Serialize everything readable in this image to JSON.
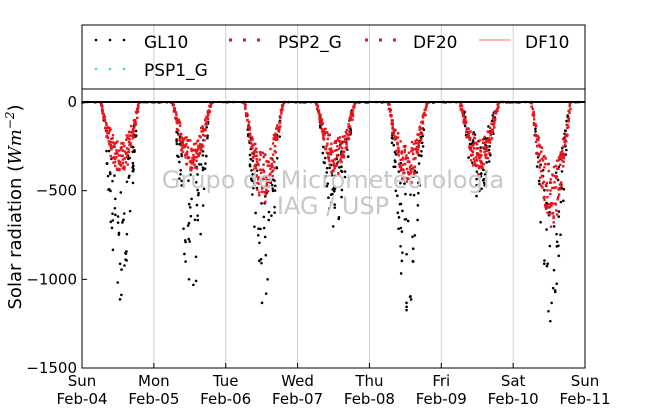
{
  "chart_data": {
    "type": "scatter",
    "ylabel_prefix": "Solar radiation (",
    "ylabel_unit": "Wm",
    "ylabel_exp": "−2",
    "ylabel_suffix": ")",
    "ylim": [
      -1500,
      0
    ],
    "yticks": [
      {
        "value": 0,
        "label": "0"
      },
      {
        "value": -500,
        "label": "−500"
      },
      {
        "value": -1000,
        "label": "−1000"
      },
      {
        "value": -1500,
        "label": "−1500"
      }
    ],
    "xlim": [
      "2018-02-04",
      "2018-02-11"
    ],
    "xticks": [
      {
        "day": "Sun",
        "date": "Feb-04"
      },
      {
        "day": "Mon",
        "date": "Feb-05"
      },
      {
        "day": "Tue",
        "date": "Feb-06"
      },
      {
        "day": "Wed",
        "date": "Feb-07"
      },
      {
        "day": "Thu",
        "date": "Feb-08"
      },
      {
        "day": "Fri",
        "date": "Feb-09"
      },
      {
        "day": "Sat",
        "date": "Feb-10"
      },
      {
        "day": "Sun",
        "date": "Feb-11"
      }
    ],
    "grid": "vertical",
    "legend_position": "top",
    "watermark": [
      "Grupo de Micrometeorologia",
      "IAG / USP"
    ],
    "series": [
      {
        "name": "GL10",
        "style": "dots",
        "color": "#000000"
      },
      {
        "name": "PSP2_G",
        "style": "dots",
        "color": "#e8141c"
      },
      {
        "name": "DF20",
        "style": "dots",
        "color": "#e8141c"
      },
      {
        "name": "DF10",
        "style": "line",
        "color": "#ff6f6f"
      },
      {
        "name": "PSP1_G",
        "style": "dots",
        "color": "#3fd9d9"
      }
    ],
    "days": [
      {
        "date": "Feb-04",
        "gl_peak": -1120,
        "df_peak": -400
      },
      {
        "date": "Feb-05",
        "gl_peak": -1115,
        "df_peak": -380
      },
      {
        "date": "Feb-06",
        "gl_peak": -1150,
        "df_peak": -520
      },
      {
        "date": "Feb-07",
        "gl_peak": -740,
        "df_peak": -380
      },
      {
        "date": "Feb-08",
        "gl_peak": -1210,
        "df_peak": -450
      },
      {
        "date": "Feb-09",
        "gl_peak": -560,
        "df_peak": -380
      },
      {
        "date": "Feb-10",
        "gl_peak": -1250,
        "df_peak": -650
      }
    ]
  }
}
